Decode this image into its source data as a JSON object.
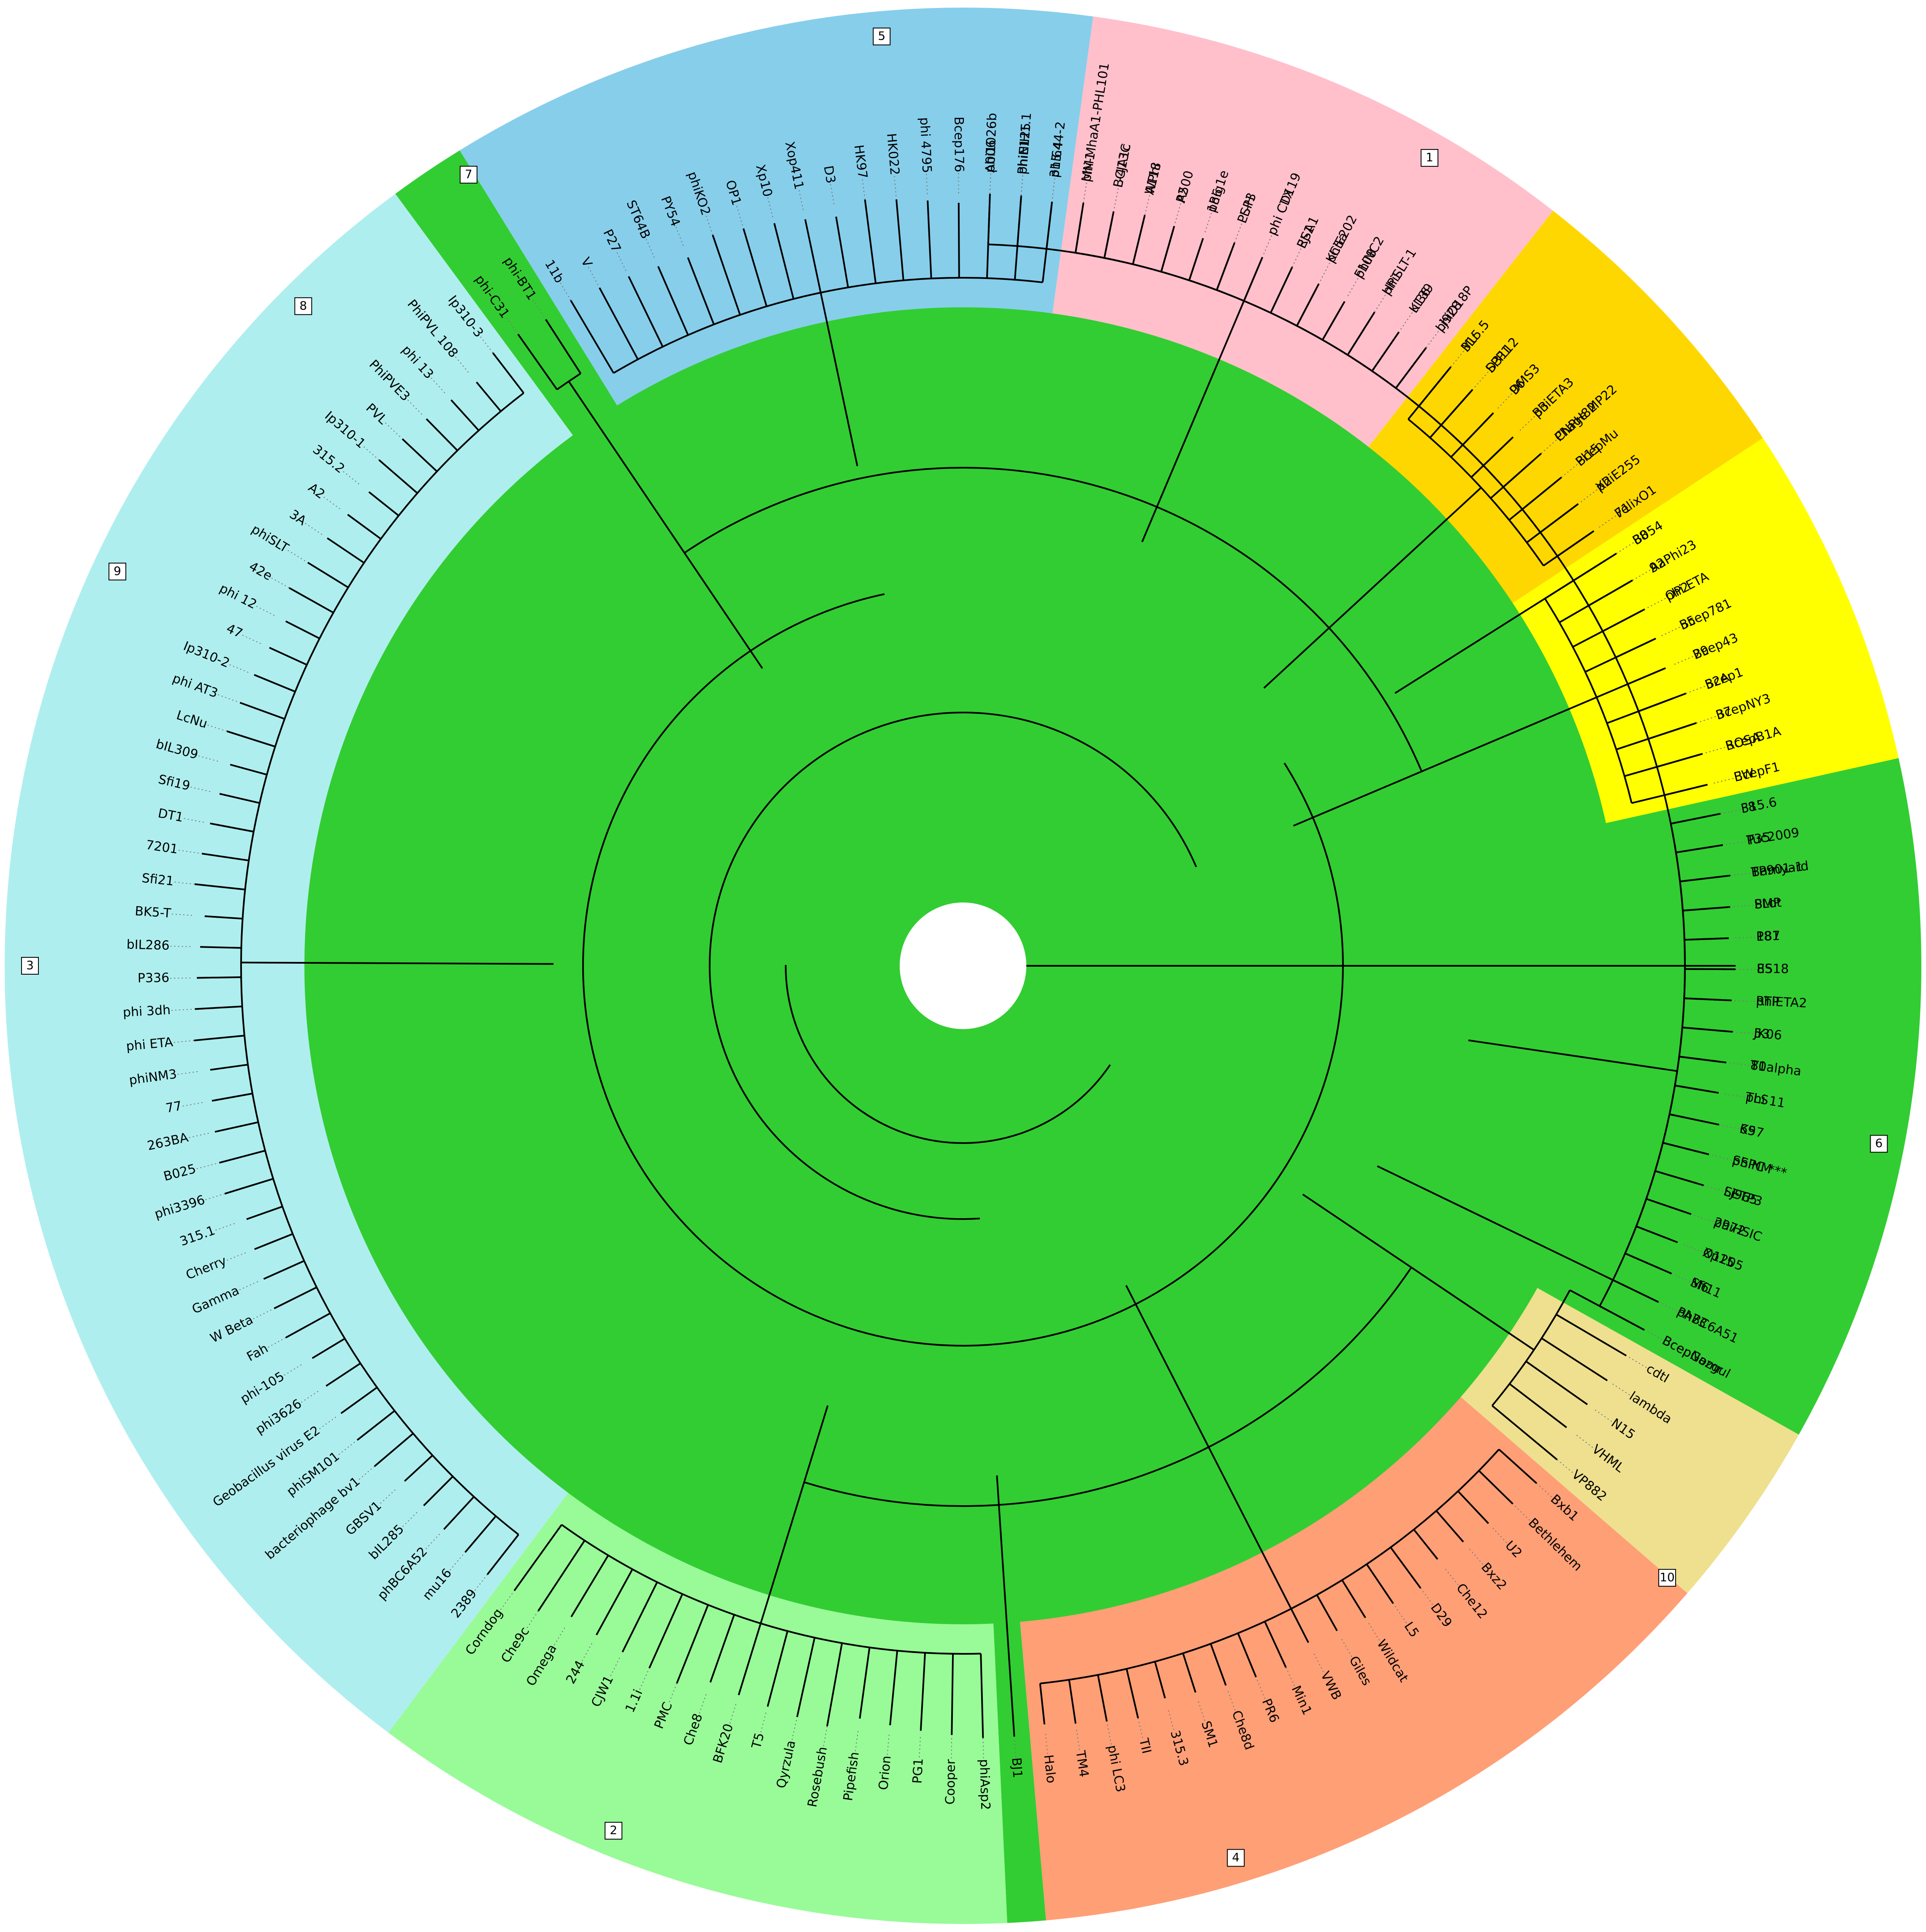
{
  "colors": {
    "background": "#ffffff",
    "core": "#32CD32",
    "branch": "#000000",
    "leader": "#7a7a7a"
  },
  "clades": [
    {
      "id": "1",
      "color": "#E0FFFF",
      "tag": "1",
      "tag_angle": 300,
      "leaves": [
        "A006",
        "PhiNIH1.1",
        "315.4",
        "MM1",
        "BCJA1c",
        "A118",
        "A500",
        "phig1e",
        "LL-H",
        "phi CD119",
        "EJ-1",
        "KC5a",
        "phiNC2",
        "phiSLT-1",
        "ul36",
        "Lj928",
        "315.5",
        "SPP1",
        "96",
        "phiETA3",
        "CNPH82",
        "Pl15",
        "X2",
        "71",
        "88",
        "92",
        "phi ETA",
        "55",
        "29",
        "52A",
        "37",
        "ROSA",
        "EW",
        "315.6",
        "Tuc2009",
        "TP901-1",
        "SMP",
        "187",
        "85",
        "phiETA2",
        "53",
        "80alpha",
        "phi 11",
        "69",
        "phiNM",
        "Lj965",
        "2972",
        "O1205",
        "Sfi11"
      ]
    },
    {
      "id": "root",
      "color": "#ffffff",
      "tag": "",
      "tag_angle": null,
      "leaves": [
        "phBC6A51"
      ]
    },
    {
      "id": "6",
      "color": "#EEE08E",
      "tag": "6",
      "tag_angle": 11,
      "leaves": [
        "BcepNazgul",
        "cdtI",
        "lambda",
        "N15",
        "VHML",
        "VP882"
      ]
    },
    {
      "id": "10",
      "color": "#FF9F76",
      "tag": "10",
      "tag_angle": 41,
      "leaves": [
        "Bxb1",
        "Bethlehem",
        "U2",
        "Bxz2",
        "Che12",
        "D29",
        "L5",
        "Wildcat",
        "Giles",
        "VWB",
        "Min1",
        "PR6",
        "Che8d",
        "SM1",
        "315.3",
        "TII",
        "phi LC3",
        "TM4",
        "Halo"
      ]
    },
    {
      "id": "BJ1",
      "color": "#32CD32",
      "tag": "",
      "tag_angle": null,
      "leaves": [
        "BJ1"
      ]
    },
    {
      "id": "4",
      "color": "#98FB98",
      "tag": "4",
      "tag_angle": 73,
      "leaves": [
        "phiAsp2",
        "Cooper",
        "PG1",
        "Orion",
        "Pipefish",
        "Rosebush",
        "Qyrzula",
        "T5",
        "BFK20",
        "Che8",
        "PMC",
        "1.1i",
        "CJW1",
        "244",
        "Omega",
        "Che9c",
        "Corndog"
      ]
    },
    {
      "id": "2",
      "color": "#AFEEEE",
      "tag": "2",
      "tag_angle": 112,
      "leaves": [
        "2389",
        "mu16",
        "phBC6A52",
        "bIL285",
        "GBSV1",
        "bacteriophage bv1",
        "phiSM101",
        "Geobacillus virus E2",
        "phi3626",
        "phi-105",
        "Fah",
        "W Beta",
        "Gamma",
        "Cherry",
        "315.1",
        "phi3396",
        "B025",
        "263BA",
        "77",
        "phiNM3",
        "phi ETA",
        "phi 3dh",
        "P336",
        "bIL286",
        "BK5-T",
        "Sfi21",
        "7201",
        "DT1",
        "Sfi19",
        "bIL309",
        "LcNu",
        "phi AT3",
        "Ip310-2",
        "47",
        "phi 12",
        "42e",
        "phiSLT",
        "3A",
        "A2",
        "315.2",
        "Ip310-1",
        "PVL",
        "PhiPVE3",
        "phi 13",
        "PhiPVL 108",
        "Ip310-3"
      ]
    },
    {
      "id": "phiC31",
      "color": "#32CD32",
      "tag": "",
      "tag_angle": null,
      "leaves": [
        "phi-C31",
        "phi-BT1"
      ]
    },
    {
      "id": "3",
      "color": "#87CEEB",
      "tag": "3",
      "tag_angle": 180,
      "leaves": [
        "11b",
        "V",
        "P27",
        "ST64B",
        "PY54",
        "phiKO2",
        "OP1",
        "Xp10",
        "Xop411",
        "D3",
        "HK97",
        "HK022",
        "phi 4795",
        "Bcep176",
        "phi1026b",
        "phiE125",
        "phi644-2"
      ]
    },
    {
      "id": "9",
      "color": "#FFC0CB",
      "tag": "9",
      "tag_angle": 205,
      "leaves": [
        "phi-MhaA1-PHL101",
        "L-413C",
        "WPhi",
        "P2",
        "186",
        "PSP3",
        "phi CTX",
        "RSA1",
        "phiE202",
        "F108",
        "HP1",
        "K139",
        "phiO18P"
      ]
    },
    {
      "id": "8",
      "color": "#FFD700",
      "tag": "8",
      "tag_angle": 225,
      "leaves": [
        "Mu",
        "D3112",
        "DMS3",
        "B3",
        "Phage MP22",
        "BcepMu",
        "phiE255",
        "FelixO1"
      ]
    },
    {
      "id": "7",
      "color": "#FFFF00",
      "tag": "7",
      "tag_angle": 238,
      "leaves": [
        "B054",
        "AaPhi23",
        "OP2",
        "Bcep781",
        "Bcep43",
        "Bcep1",
        "BcepNY3",
        "BcepB1A",
        "BcepF1"
      ]
    },
    {
      "id": "5",
      "color": "#32CD32",
      "tag": "5",
      "tag_angle": 265,
      "leaves": [
        "F8",
        "P35",
        "Barnyard",
        "PLot",
        "P81",
        "ES18",
        "RTP",
        "JK06",
        "T1",
        "TLS",
        "K57",
        "SSPC ***",
        "SETP3",
        "phiHSIC",
        "Xp15",
        "M6",
        "PA73",
        "BcepGomr"
      ]
    }
  ]
}
